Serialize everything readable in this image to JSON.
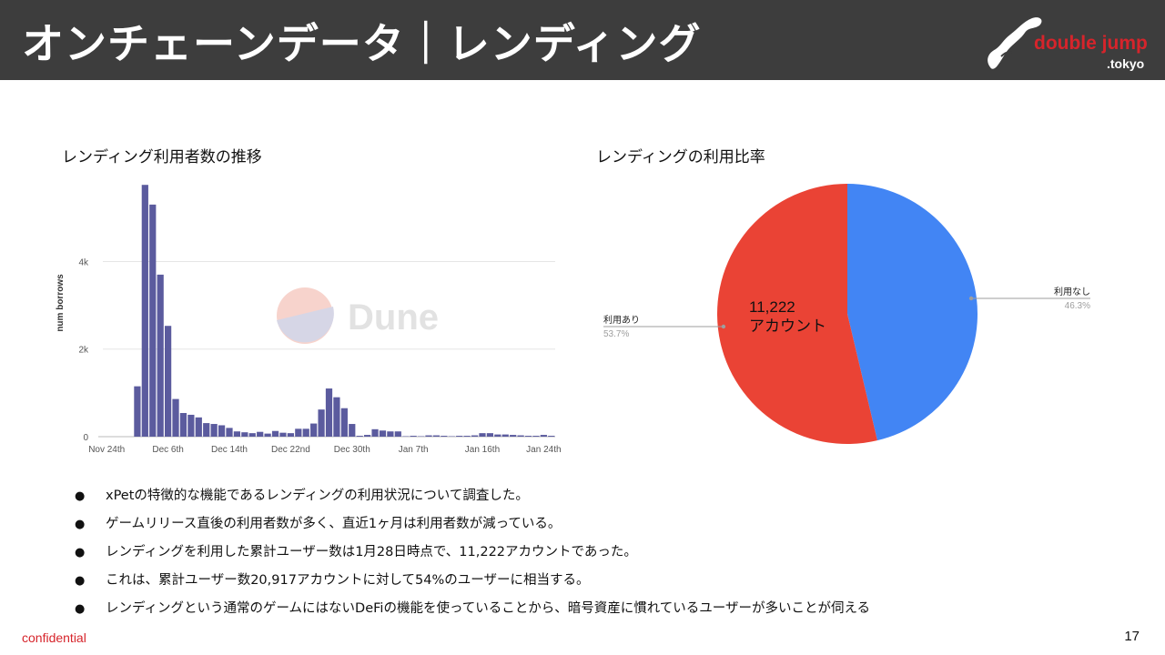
{
  "header": {
    "title": "オンチェーンデータ｜レンディング"
  },
  "logo": {
    "line1": "double jump",
    "line2": ".tokyo"
  },
  "chart_data": [
    {
      "type": "bar",
      "title": "レンディング利用者数の推移",
      "ylabel": "num borrows",
      "xlabel": "",
      "watermark": "Dune",
      "ylim": [
        0,
        5900
      ],
      "yticks": [
        0,
        2000,
        4000
      ],
      "ytick_labels": [
        "0",
        "2k",
        "4k"
      ],
      "xtick_labels": [
        "Nov 24th",
        "Dec 6th",
        "Dec 14th",
        "Dec 22nd",
        "Dec 30th",
        "Jan 7th",
        "Jan 16th",
        "Jan 24th"
      ],
      "xtick_index": [
        0,
        8,
        16,
        24,
        32,
        40,
        49,
        57
      ],
      "bar_color": "#5b5b9e",
      "grid": true,
      "values": [
        0,
        0,
        0,
        0,
        1150,
        5750,
        5300,
        3700,
        2530,
        860,
        540,
        500,
        440,
        310,
        290,
        260,
        200,
        120,
        100,
        80,
        110,
        70,
        130,
        90,
        80,
        180,
        180,
        300,
        620,
        1100,
        900,
        650,
        290,
        20,
        40,
        170,
        140,
        120,
        120,
        10,
        20,
        10,
        30,
        30,
        20,
        10,
        20,
        20,
        30,
        80,
        80,
        50,
        50,
        40,
        30,
        20,
        20,
        40,
        20
      ]
    },
    {
      "type": "pie",
      "title": "レンディングの利用比率",
      "slices": [
        {
          "label": "利用なし",
          "value": 46.3,
          "pct_label": "46.3%",
          "color": "#4285f4"
        },
        {
          "label": "利用あり",
          "value": 53.7,
          "pct_label": "53.7%",
          "color": "#ea4335"
        }
      ],
      "annotation": [
        "11,222",
        "アカウント"
      ]
    }
  ],
  "bullets": [
    "xPetの特徴的な機能であるレンディングの利用状況について調査した。",
    "ゲームリリース直後の利用者数が多く、直近1ヶ月は利用者数が減っている。",
    "レンディングを利用した累計ユーザー数は1月28日時点で、11,222アカウントであった。",
    "これは、累計ユーザー数20,917アカウントに対して54%のユーザーに相当する。",
    "レンディングという通常のゲームにはないDeFiの機能を使っていることから、暗号資産に慣れているユーザーが多いことが伺える"
  ],
  "bullet_symbol": "●",
  "footer": {
    "confidential": "confidential",
    "page": "17"
  }
}
